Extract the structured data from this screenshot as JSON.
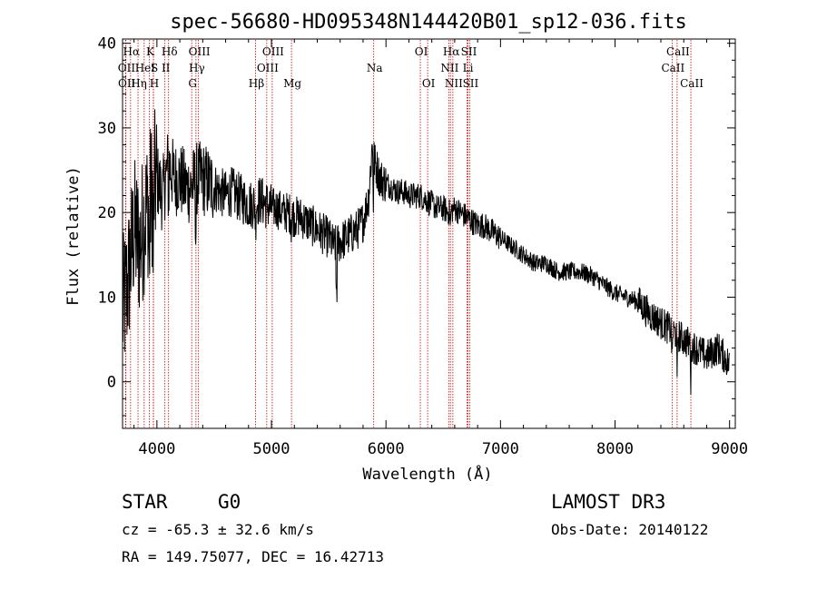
{
  "chart_data": {
    "type": "line",
    "title": "spec-56680-HD095348N144420B01_sp12-036.fits",
    "xlabel": "Wavelength (Å)",
    "ylabel": "Flux (relative)",
    "xlim": [
      3700,
      9050
    ],
    "ylim": [
      -5.5,
      40.5
    ],
    "xticks": [
      4000,
      5000,
      6000,
      7000,
      8000,
      9000
    ],
    "yticks": [
      0,
      10,
      20,
      30,
      40
    ],
    "spectrum_anchor_points": {
      "x": [
        3700,
        3750,
        3800,
        3850,
        3900,
        3950,
        4000,
        4050,
        4100,
        4150,
        4200,
        4250,
        4300,
        4350,
        4400,
        4450,
        4500,
        4550,
        4600,
        4650,
        4700,
        4750,
        4800,
        4850,
        4900,
        4950,
        5000,
        5050,
        5100,
        5150,
        5200,
        5250,
        5300,
        5350,
        5400,
        5450,
        5500,
        5550,
        5600,
        5650,
        5700,
        5750,
        5800,
        5850,
        5880,
        5900,
        5950,
        6000,
        6050,
        6100,
        6150,
        6200,
        6250,
        6300,
        6350,
        6400,
        6450,
        6500,
        6550,
        6600,
        6650,
        6700,
        6750,
        6800,
        6850,
        6900,
        6950,
        7000,
        7100,
        7200,
        7300,
        7400,
        7500,
        7600,
        7700,
        7800,
        7900,
        8000,
        8100,
        8200,
        8300,
        8400,
        8500,
        8600,
        8700,
        8800,
        8900,
        9000
      ],
      "y": [
        8,
        12,
        18,
        16,
        20,
        22,
        24,
        22,
        26,
        24,
        24,
        23,
        23,
        24,
        24,
        23.5,
        23,
        22.5,
        22,
        22.5,
        22,
        21.5,
        21,
        21,
        21.5,
        21,
        20.5,
        20.5,
        20,
        20,
        19.5,
        19.5,
        19,
        18.5,
        18,
        17.5,
        17,
        16,
        16.5,
        17,
        17.5,
        18,
        19,
        22,
        28,
        26,
        24,
        23.5,
        23,
        22.5,
        22.5,
        22,
        22,
        22,
        21.5,
        21,
        20.5,
        20.5,
        20,
        20.5,
        20,
        19.5,
        19,
        18.5,
        18.5,
        18,
        17.5,
        17,
        16,
        15,
        14,
        14,
        13,
        13,
        13,
        12.5,
        11.5,
        10.5,
        10,
        9.5,
        8,
        7,
        6,
        5,
        4,
        3,
        4,
        2
      ]
    },
    "spectral_lines": [
      {
        "name": "Hα",
        "wavelength": 3770,
        "row": 1
      },
      {
        "name": "OII",
        "wavelength": 3727,
        "row": 2
      },
      {
        "name": "OII",
        "wavelength": 3729,
        "row": 3
      },
      {
        "name": "K",
        "wavelength": 3934,
        "row": 1
      },
      {
        "name": "HeI",
        "wavelength": 3889,
        "row": 2
      },
      {
        "name": "Hη",
        "wavelength": 3835,
        "row": 3
      },
      {
        "name": "S",
        "wavelength": 3970,
        "row": 2
      },
      {
        "name": "H",
        "wavelength": 3969,
        "row": 3
      },
      {
        "name": "Hδ",
        "wavelength": 4102,
        "row": 1
      },
      {
        "name": "II",
        "wavelength": 4070,
        "row": 2
      },
      {
        "name": "OIII",
        "wavelength": 4363,
        "row": 1
      },
      {
        "name": "Hγ",
        "wavelength": 4341,
        "row": 2
      },
      {
        "name": "G",
        "wavelength": 4304,
        "row": 3
      },
      {
        "name": "OIII",
        "wavelength": 5007,
        "row": 1
      },
      {
        "name": "OIII",
        "wavelength": 4959,
        "row": 2
      },
      {
        "name": "Hβ",
        "wavelength": 4861,
        "row": 3
      },
      {
        "name": "Mg",
        "wavelength": 5175,
        "row": 3
      },
      {
        "name": "Na",
        "wavelength": 5893,
        "row": 2
      },
      {
        "name": "OI",
        "wavelength": 6300,
        "row": 1
      },
      {
        "name": "OI",
        "wavelength": 6364,
        "row": 3
      },
      {
        "name": "Hα",
        "wavelength": 6563,
        "row": 1
      },
      {
        "name": "SII",
        "wavelength": 6716,
        "row": 1
      },
      {
        "name": "NII",
        "wavelength": 6548,
        "row": 2
      },
      {
        "name": "Li",
        "wavelength": 6708,
        "row": 2
      },
      {
        "name": "NII",
        "wavelength": 6584,
        "row": 3
      },
      {
        "name": "SII",
        "wavelength": 6731,
        "row": 3
      },
      {
        "name": "CaII",
        "wavelength": 8542,
        "row": 1
      },
      {
        "name": "CaII",
        "wavelength": 8498,
        "row": 2
      },
      {
        "name": "CaII",
        "wavelength": 8662,
        "row": 3
      }
    ]
  },
  "footer": {
    "object_class": "STAR",
    "subclass": "G0",
    "survey": "LAMOST DR3",
    "redshift": "cz = -65.3 ± 32.6 km/s",
    "obs_date": "Obs-Date: 20140122",
    "coords": "RA = 149.75077, DEC =  16.42713"
  },
  "colors": {
    "spectrum": "#000000",
    "line_markers": "#cc0000",
    "axes": "#000000"
  }
}
